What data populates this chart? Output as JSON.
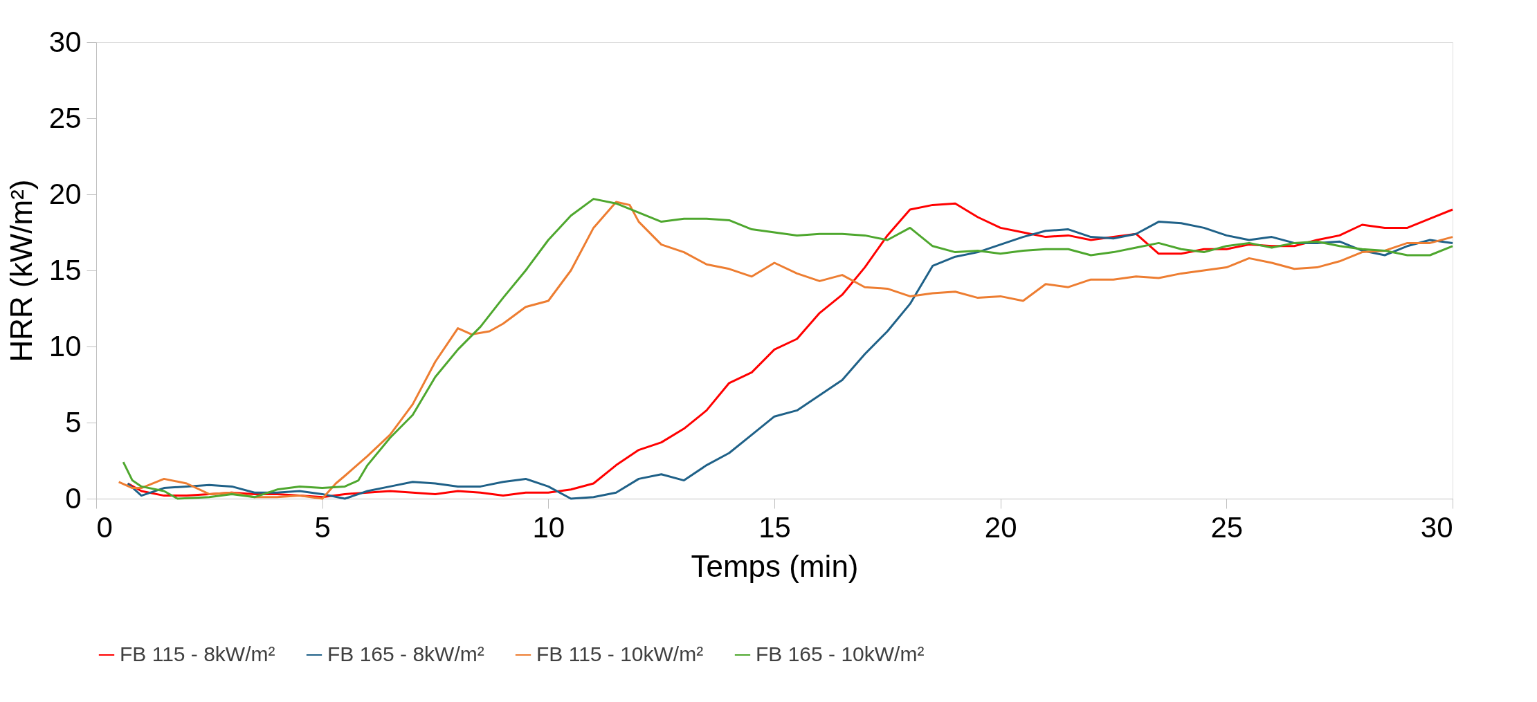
{
  "chart_data": {
    "type": "line",
    "xlabel": "Temps (min)",
    "ylabel": "HRR  (kW/m²)",
    "xlim": [
      0,
      30
    ],
    "ylim": [
      0,
      30
    ],
    "xticks": [
      0,
      5,
      10,
      15,
      20,
      25,
      30
    ],
    "yticks": [
      0,
      5,
      10,
      15,
      20,
      25,
      30
    ],
    "grid": false,
    "legend": "bottom",
    "marker": "none",
    "line_style": "solid",
    "series": [
      {
        "name": "FB 115 - 8kW/m²",
        "color": "#ff0000",
        "x": [
          0.7,
          1,
          1.5,
          2,
          2.5,
          3,
          3.5,
          4,
          4.5,
          5,
          5.5,
          6,
          6.5,
          7,
          7.5,
          8,
          8.5,
          9,
          9.5,
          10,
          10.5,
          11,
          11.5,
          12,
          12.5,
          13,
          13.5,
          14,
          14.5,
          15,
          15.5,
          16,
          16.5,
          17,
          17.5,
          18,
          18.5,
          19,
          19.5,
          20,
          20.5,
          21,
          21.5,
          22,
          22.5,
          23,
          23.5,
          24,
          24.5,
          25,
          25.5,
          26,
          26.5,
          27,
          27.5,
          28,
          28.5,
          29,
          29.5,
          30
        ],
        "values": [
          1.0,
          0.5,
          0.2,
          0.2,
          0.3,
          0.4,
          0.3,
          0.3,
          0.2,
          0.1,
          0.3,
          0.4,
          0.5,
          0.4,
          0.3,
          0.5,
          0.4,
          0.2,
          0.4,
          0.4,
          0.6,
          1.0,
          2.2,
          3.2,
          3.7,
          4.6,
          5.8,
          7.6,
          8.3,
          9.8,
          10.5,
          12.2,
          13.4,
          15.2,
          17.3,
          19.0,
          19.3,
          19.4,
          18.5,
          17.8,
          17.5,
          17.2,
          17.3,
          17.0,
          17.2,
          17.4,
          16.1,
          16.1,
          16.4,
          16.4,
          16.7,
          16.6,
          16.6,
          17.0,
          17.3,
          18.0,
          17.8,
          17.8,
          18.4,
          19.0
        ]
      },
      {
        "name": "FB 165 - 8kW/m²",
        "color": "#1f6188",
        "x": [
          0.7,
          1,
          1.5,
          2,
          2.5,
          3,
          3.5,
          4,
          4.5,
          5,
          5.5,
          6,
          6.5,
          7,
          7.5,
          8,
          8.5,
          9,
          9.5,
          10,
          10.5,
          11,
          11.5,
          12,
          12.5,
          13,
          13.5,
          14,
          14.5,
          15,
          15.5,
          16,
          16.5,
          17,
          17.5,
          18,
          18.5,
          19,
          19.5,
          20,
          20.5,
          21,
          21.5,
          22,
          22.5,
          23,
          23.5,
          24,
          24.5,
          25,
          25.5,
          26,
          26.5,
          27,
          27.5,
          28,
          28.5,
          29,
          29.5,
          30
        ],
        "values": [
          1.0,
          0.2,
          0.7,
          0.8,
          0.9,
          0.8,
          0.4,
          0.4,
          0.5,
          0.3,
          0.0,
          0.5,
          0.8,
          1.1,
          1.0,
          0.8,
          0.8,
          1.1,
          1.3,
          0.8,
          0.0,
          0.1,
          0.4,
          1.3,
          1.6,
          1.2,
          2.2,
          3.0,
          4.2,
          5.4,
          5.8,
          6.8,
          7.8,
          9.5,
          11.0,
          12.8,
          15.3,
          15.9,
          16.2,
          16.7,
          17.2,
          17.6,
          17.7,
          17.2,
          17.1,
          17.4,
          18.2,
          18.1,
          17.8,
          17.3,
          17.0,
          17.2,
          16.8,
          16.8,
          16.9,
          16.3,
          16.0,
          16.6,
          17.0,
          16.8
        ]
      },
      {
        "name": "FB 115 - 10kW/m²",
        "color": "#ed7d31",
        "x": [
          0.5,
          0.8,
          1,
          1.5,
          2,
          2.5,
          3,
          3.5,
          4,
          4.5,
          5,
          5.3,
          5.5,
          6,
          6.5,
          7,
          7.5,
          8,
          8.3,
          8.7,
          9,
          9.5,
          10,
          10.5,
          11,
          11.5,
          11.8,
          12,
          12.5,
          13,
          13.5,
          14,
          14.5,
          15,
          15.5,
          16,
          16.5,
          17,
          17.5,
          18,
          18.5,
          19,
          19.5,
          20,
          20.5,
          21,
          21.5,
          22,
          22.5,
          23,
          23.5,
          24,
          24.5,
          25,
          25.5,
          26,
          26.5,
          27,
          27.5,
          28,
          28.5,
          29,
          29.5,
          30
        ],
        "values": [
          1.1,
          0.7,
          0.7,
          1.3,
          1.0,
          0.3,
          0.4,
          0.1,
          0.1,
          0.2,
          0.0,
          1.0,
          1.5,
          2.8,
          4.2,
          6.2,
          9.0,
          11.2,
          10.8,
          11.0,
          11.5,
          12.6,
          13.0,
          15.0,
          17.8,
          19.5,
          19.3,
          18.2,
          16.7,
          16.2,
          15.4,
          15.1,
          14.6,
          15.5,
          14.8,
          14.3,
          14.7,
          13.9,
          13.8,
          13.3,
          13.5,
          13.6,
          13.2,
          13.3,
          13.0,
          14.1,
          13.9,
          14.4,
          14.4,
          14.6,
          14.5,
          14.8,
          15.0,
          15.2,
          15.8,
          15.5,
          15.1,
          15.2,
          15.6,
          16.2,
          16.3,
          16.8,
          16.8,
          17.2
        ]
      },
      {
        "name": "FB 165 - 10kW/m²",
        "color": "#4ea72e",
        "x": [
          0.6,
          0.8,
          1,
          1.5,
          1.8,
          2.5,
          3,
          3.5,
          4,
          4.5,
          5,
          5.5,
          5.8,
          6,
          6.5,
          7,
          7.5,
          8,
          8.5,
          9,
          9.5,
          10,
          10.5,
          11,
          11.5,
          12,
          12.5,
          13,
          13.5,
          14,
          14.5,
          15,
          15.5,
          16,
          16.5,
          17,
          17.5,
          18,
          18.5,
          19,
          19.5,
          20,
          20.5,
          21,
          21.5,
          22,
          22.5,
          23,
          23.5,
          24,
          24.5,
          25,
          25.5,
          26,
          26.5,
          27,
          27.5,
          28,
          28.5,
          29,
          29.5,
          30
        ],
        "values": [
          2.4,
          1.2,
          0.8,
          0.5,
          0.0,
          0.1,
          0.3,
          0.1,
          0.6,
          0.8,
          0.7,
          0.8,
          1.2,
          2.2,
          4.0,
          5.5,
          8.0,
          9.8,
          11.3,
          13.2,
          15.0,
          17.0,
          18.6,
          19.7,
          19.4,
          18.8,
          18.2,
          18.4,
          18.4,
          18.3,
          17.7,
          17.5,
          17.3,
          17.4,
          17.4,
          17.3,
          17.0,
          17.8,
          16.6,
          16.2,
          16.3,
          16.1,
          16.3,
          16.4,
          16.4,
          16.0,
          16.2,
          16.5,
          16.8,
          16.4,
          16.2,
          16.6,
          16.8,
          16.5,
          16.8,
          16.9,
          16.6,
          16.4,
          16.3,
          16.0,
          16.0,
          16.6
        ]
      }
    ]
  }
}
